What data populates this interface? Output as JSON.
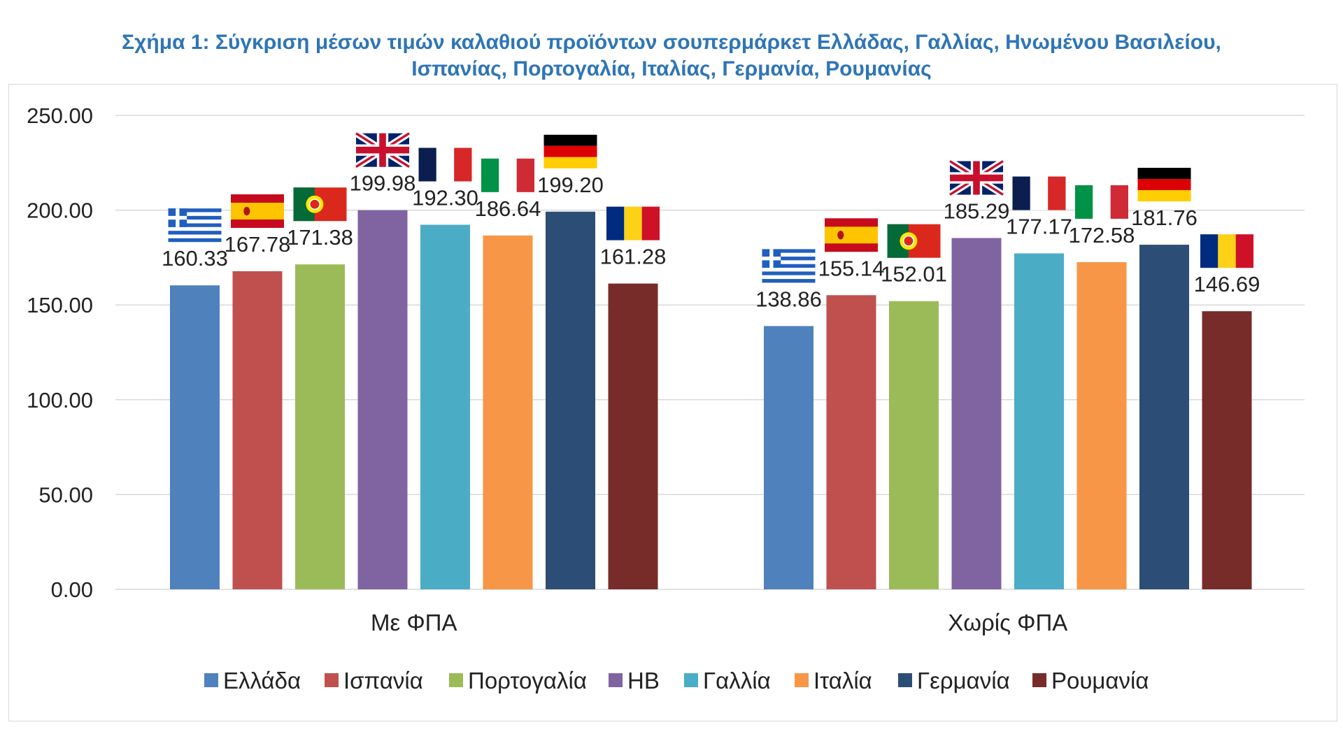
{
  "title": {
    "line1": "Σχήμα 1: Σύγκριση μέσων τιμών καλαθιού προϊόντων σουπερμάρκετ Ελλάδας, Γαλλίας, Ηνωμένου Βασιλείου,",
    "line2": "Ισπανίας, Πορτογαλία, Ιταλίας, Γερμανία, Ρουμανίας"
  },
  "chart_data": {
    "type": "bar",
    "title": "Σχήμα 1: Σύγκριση μέσων τιμών καλαθιού προϊόντων σουπερμάρκετ Ελλάδας, Γαλλίας, Ηνωμένου Βασιλείου, Ισπανίας, Πορτογαλία, Ιταλίας, Γερμανία, Ρουμανίας",
    "xlabel": "",
    "ylabel": "",
    "categories": [
      "Με ΦΠΑ",
      "Χωρίς ΦΠΑ"
    ],
    "ylim": [
      0,
      250
    ],
    "yticks": [
      "0.00",
      "50.00",
      "100.00",
      "150.00",
      "200.00",
      "250.00"
    ],
    "ytick_values": [
      0,
      50,
      100,
      150,
      200,
      250
    ],
    "grid": true,
    "legend_position": "bottom",
    "series": [
      {
        "name": "Ελλάδα",
        "color": "#4F81BD",
        "flag": "greece-flag-icon",
        "values": [
          160.33,
          138.86
        ],
        "labels": [
          "160.33",
          "138.86"
        ]
      },
      {
        "name": "Ισπανία",
        "color": "#C0504D",
        "flag": "spain-flag-icon",
        "values": [
          167.78,
          155.14
        ],
        "labels": [
          "167.78",
          "155.14"
        ]
      },
      {
        "name": "Πορτογαλία",
        "color": "#9BBB59",
        "flag": "portugal-flag-icon",
        "values": [
          171.38,
          152.01
        ],
        "labels": [
          "171.38",
          "152.01"
        ]
      },
      {
        "name": "ΗΒ",
        "color": "#8064A2",
        "flag": "uk-flag-icon",
        "values": [
          199.98,
          185.29
        ],
        "labels": [
          "199.98",
          "185.29"
        ]
      },
      {
        "name": "Γαλλία",
        "color": "#4BACC6",
        "flag": "france-flag-icon",
        "values": [
          192.3,
          177.17
        ],
        "labels": [
          "192.30",
          "177.17"
        ]
      },
      {
        "name": "Ιταλία",
        "color": "#F79646",
        "flag": "italy-flag-icon",
        "values": [
          186.64,
          172.58
        ],
        "labels": [
          "186.64",
          "172.58"
        ]
      },
      {
        "name": "Γερμανία",
        "color": "#2C4D75",
        "flag": "germany-flag-icon",
        "values": [
          199.2,
          181.76
        ],
        "labels": [
          "199.20",
          "181.76"
        ]
      },
      {
        "name": "Ρουμανία",
        "color": "#772C2A",
        "flag": "romania-flag-icon",
        "values": [
          161.28,
          146.69
        ],
        "labels": [
          "161.28",
          "146.69"
        ]
      }
    ]
  }
}
